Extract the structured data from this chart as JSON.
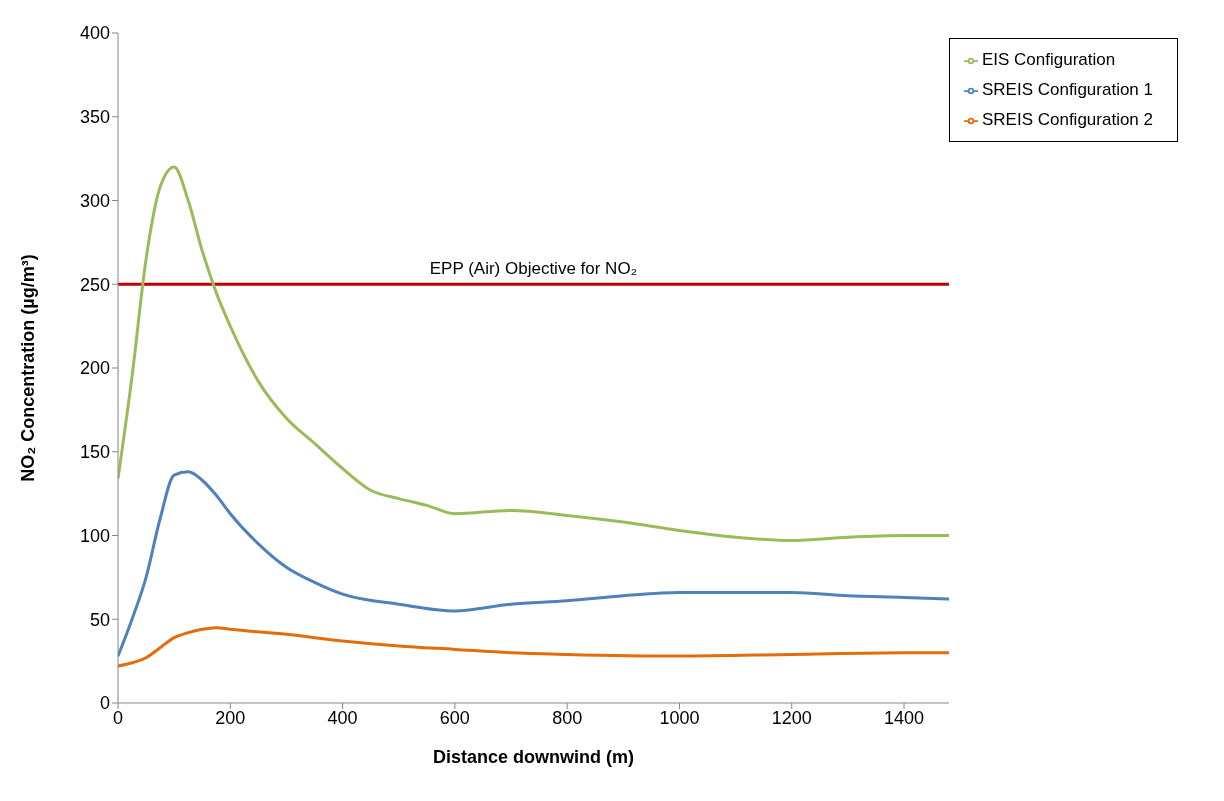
{
  "chart_data": {
    "type": "line",
    "xlabel": "Distance downwind (m)",
    "ylabel": "NO₂ Concentration (µg/m³)",
    "xlim": [
      0,
      1480
    ],
    "xticks": [
      0,
      200,
      400,
      600,
      800,
      1000,
      1200,
      1400
    ],
    "ylim": [
      0,
      400
    ],
    "yticks": [
      0,
      50,
      100,
      150,
      200,
      250,
      300,
      350,
      400
    ],
    "grid": false,
    "legend": "top right",
    "marker": "none",
    "line_style": "solid",
    "series": [
      {
        "name": "SREIS Configuration 1",
        "color": "#4f81bd",
        "x": [
          0,
          25,
          50,
          75,
          100,
          125,
          150,
          175,
          200,
          250,
          300,
          350,
          400,
          500,
          600,
          700,
          800,
          900,
          1000,
          1100,
          1200,
          1300,
          1400,
          1480
        ],
        "values": [
          28,
          50,
          75,
          110,
          136,
          138,
          133,
          124,
          113,
          95,
          81,
          72,
          65,
          59,
          55,
          59,
          61,
          64,
          66,
          66,
          66,
          64,
          63,
          62
        ]
      },
      {
        "name": "SREIS Configuration 2",
        "color": "#e46c0a",
        "x": [
          0,
          25,
          50,
          75,
          100,
          125,
          150,
          175,
          200,
          300,
          400,
          500,
          600,
          700,
          800,
          1000,
          1200,
          1400,
          1480
        ],
        "values": [
          22,
          24,
          27,
          33,
          39,
          42,
          44,
          45,
          44,
          41,
          37,
          34,
          32,
          30,
          29,
          28,
          29,
          30,
          30
        ]
      },
      {
        "name": "EIS Configuration",
        "color": "#9bbb59",
        "x": [
          0,
          25,
          50,
          75,
          100,
          125,
          150,
          175,
          200,
          250,
          300,
          350,
          400,
          450,
          500,
          550,
          600,
          700,
          800,
          900,
          1000,
          1100,
          1200,
          1300,
          1400,
          1480
        ],
        "values": [
          134,
          195,
          265,
          308,
          320,
          300,
          270,
          245,
          225,
          192,
          170,
          155,
          140,
          127,
          122,
          118,
          113,
          115,
          112,
          108,
          103,
          99,
          97,
          99,
          100,
          100
        ]
      }
    ],
    "ref_lines": [
      {
        "axis": "y",
        "value": 250,
        "label": "EPP (Air) Objective for NO₂",
        "color": "#c00000",
        "line_style": "solid"
      }
    ]
  }
}
